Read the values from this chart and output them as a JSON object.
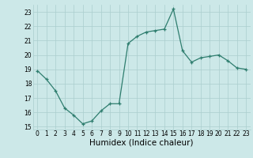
{
  "x": [
    0,
    1,
    2,
    3,
    4,
    5,
    6,
    7,
    8,
    9,
    10,
    11,
    12,
    13,
    14,
    15,
    16,
    17,
    18,
    19,
    20,
    21,
    22,
    23
  ],
  "y": [
    18.9,
    18.3,
    17.5,
    16.3,
    15.8,
    15.2,
    15.4,
    16.1,
    16.6,
    16.6,
    20.8,
    21.3,
    21.6,
    21.7,
    21.8,
    23.2,
    20.3,
    19.5,
    19.8,
    19.9,
    20.0,
    19.6,
    19.1,
    19.0
  ],
  "line_color": "#2e7d6e",
  "bg_color": "#cce8e8",
  "grid_color": "#aacece",
  "xlabel": "Humidex (Indice chaleur)",
  "ylim": [
    14.8,
    23.5
  ],
  "xlim": [
    -0.5,
    23.5
  ],
  "yticks": [
    15,
    16,
    17,
    18,
    19,
    20,
    21,
    22,
    23
  ],
  "xticks": [
    0,
    1,
    2,
    3,
    4,
    5,
    6,
    7,
    8,
    9,
    10,
    11,
    12,
    13,
    14,
    15,
    16,
    17,
    18,
    19,
    20,
    21,
    22,
    23
  ],
  "tick_fontsize": 5.5,
  "xlabel_fontsize": 7.5
}
